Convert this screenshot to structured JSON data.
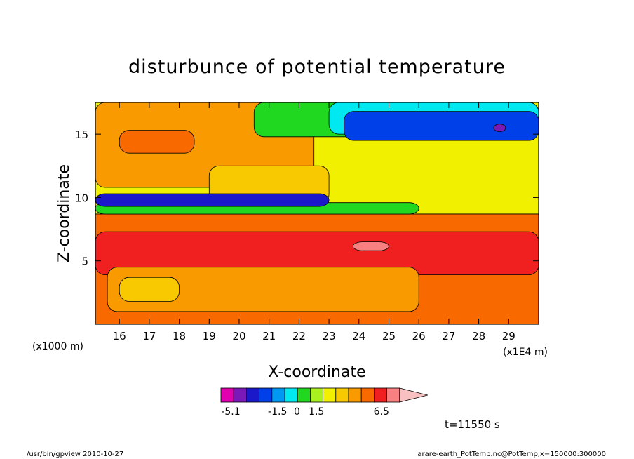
{
  "chart_data": {
    "type": "heatmap",
    "title": "disturbunce of potential temperature",
    "xlabel": "X-coordinate",
    "ylabel": "Z-coordinate",
    "x_unit": "(x1E4 m)",
    "y_unit": "(x1000 m)",
    "xlim": [
      15.2,
      30.0
    ],
    "ylim": [
      0.0,
      17.5
    ],
    "x_ticks": [
      16,
      17,
      18,
      19,
      20,
      21,
      22,
      23,
      24,
      25,
      26,
      27,
      28,
      29
    ],
    "y_ticks": [
      5,
      10,
      15
    ],
    "colorbar": {
      "labels": [
        {
          "text": "-5.1",
          "value": -5.1
        },
        {
          "text": "-1.5",
          "value": -1.5
        },
        {
          "text": "0",
          "value": 0
        },
        {
          "text": "1.5",
          "value": 1.5
        },
        {
          "text": "6.5",
          "value": 6.5
        }
      ],
      "colors": [
        "#e000b0",
        "#7a18b8",
        "#1a18c8",
        "#0040e8",
        "#0098f0",
        "#00e8f0",
        "#20d820",
        "#a8f020",
        "#f0f000",
        "#f8c800",
        "#f89a00",
        "#f86a00",
        "#f02020",
        "#f88080",
        "#f8c0c0"
      ]
    },
    "time_label": "t=11550 s",
    "footer_left": "/usr/bin/gpview   2010-10-27",
    "footer_right": "arare-earth_PotTemp.nc@PotTemp,x=150000:300000",
    "regions": [
      {
        "level": "orange",
        "color": "#f86a00",
        "x": [
          15.2,
          30.0
        ],
        "y": [
          0.0,
          8.7
        ]
      },
      {
        "level": "red",
        "color": "#f02020",
        "x": [
          15.2,
          30.0
        ],
        "y": [
          3.9,
          7.3
        ]
      },
      {
        "level": "light-orange",
        "color": "#f89a00",
        "x": [
          15.6,
          26.0
        ],
        "y": [
          1.0,
          4.5
        ]
      },
      {
        "level": "amber",
        "color": "#f8c800",
        "x": [
          16.0,
          18.0
        ],
        "y": [
          1.8,
          3.7
        ]
      },
      {
        "level": "pink",
        "color": "#f88080",
        "x": [
          23.8,
          25.0
        ],
        "y": [
          5.8,
          6.5
        ]
      },
      {
        "level": "yellow",
        "color": "#f0f000",
        "x": [
          15.2,
          30.0
        ],
        "y": [
          8.7,
          17.5
        ]
      },
      {
        "level": "light-orange-upper",
        "color": "#f89a00",
        "x": [
          15.2,
          22.5
        ],
        "y": [
          10.8,
          17.5
        ]
      },
      {
        "level": "orange-upper",
        "color": "#f86a00",
        "x": [
          16.0,
          18.5
        ],
        "y": [
          13.5,
          15.3
        ]
      },
      {
        "level": "amber-upper",
        "color": "#f8c800",
        "x": [
          19.0,
          23.0
        ],
        "y": [
          9.5,
          12.5
        ]
      },
      {
        "level": "green",
        "color": "#20d820",
        "x": [
          20.5,
          30.0
        ],
        "y": [
          14.8,
          17.5
        ]
      },
      {
        "level": "cyan",
        "color": "#00e8f0",
        "x": [
          23.0,
          30.0
        ],
        "y": [
          15.0,
          17.5
        ]
      },
      {
        "level": "blue",
        "color": "#0040e8",
        "x": [
          23.5,
          30.0
        ],
        "y": [
          14.5,
          16.8
        ]
      },
      {
        "level": "purple",
        "color": "#7a18b8",
        "x": [
          28.5,
          28.9
        ],
        "y": [
          15.2,
          15.8
        ]
      },
      {
        "level": "green-mid",
        "color": "#20d820",
        "x": [
          15.2,
          26.0
        ],
        "y": [
          8.7,
          9.6
        ]
      },
      {
        "level": "blue-band",
        "color": "#1a18c8",
        "x": [
          15.2,
          23.0
        ],
        "y": [
          9.3,
          10.3
        ]
      }
    ]
  }
}
